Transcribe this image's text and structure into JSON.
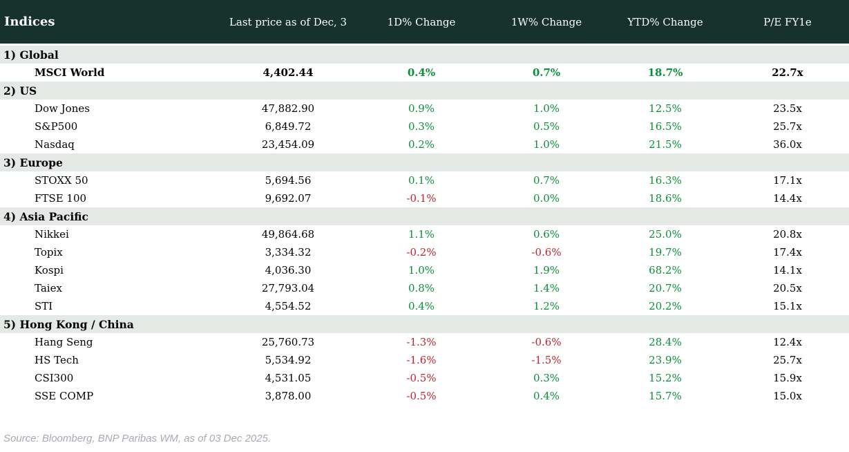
{
  "colors": {
    "header_bg": "#17322b",
    "header_text": "#ffffff",
    "section_bg": "#e5e9e6",
    "positive": "#0a9038",
    "negative": "#c2232c",
    "footer_text": "#a6abb2"
  },
  "footer": {
    "source_note": "Source: Bloomberg, BNP Paribas WM, as of 03 Dec 2025."
  },
  "chart_data": {
    "type": "table",
    "title": "Indices",
    "columns": [
      "Indices",
      "Last price as of Dec, 3",
      "1D% Change",
      "1W% Change",
      "YTD% Change",
      "P/E FY1e"
    ],
    "sections": [
      {
        "label": "1) Global",
        "rows": [
          {
            "name": "MSCI World",
            "values": [
              "4,402.44",
              "0.4%",
              "0.7%",
              "18.7%",
              "22.7x"
            ],
            "emphasis": true
          }
        ]
      },
      {
        "label": "2) US",
        "rows": [
          {
            "name": "Dow Jones",
            "values": [
              "47,882.90",
              "0.9%",
              "1.0%",
              "12.5%",
              "23.5x"
            ],
            "emphasis": false
          },
          {
            "name": "S&P500",
            "values": [
              "6,849.72",
              "0.3%",
              "0.5%",
              "16.5%",
              "25.7x"
            ],
            "emphasis": false
          },
          {
            "name": "Nasdaq",
            "values": [
              "23,454.09",
              "0.2%",
              "1.0%",
              "21.5%",
              "36.0x"
            ],
            "emphasis": false
          }
        ]
      },
      {
        "label": "3) Europe",
        "rows": [
          {
            "name": "STOXX 50",
            "values": [
              "5,694.56",
              "0.1%",
              "0.7%",
              "16.3%",
              "17.1x"
            ],
            "emphasis": false
          },
          {
            "name": "FTSE 100",
            "values": [
              "9,692.07",
              "-0.1%",
              "0.0%",
              "18.6%",
              "14.4x"
            ],
            "emphasis": false
          }
        ]
      },
      {
        "label": "4) Asia Pacific",
        "rows": [
          {
            "name": "Nikkei",
            "values": [
              "49,864.68",
              "1.1%",
              "0.6%",
              "25.0%",
              "20.8x"
            ],
            "emphasis": false
          },
          {
            "name": "Topix",
            "values": [
              "3,334.32",
              "-0.2%",
              "-0.6%",
              "19.7%",
              "17.4x"
            ],
            "emphasis": false
          },
          {
            "name": "Kospi",
            "values": [
              "4,036.30",
              "1.0%",
              "1.9%",
              "68.2%",
              "14.1x"
            ],
            "emphasis": false
          },
          {
            "name": "Taiex",
            "values": [
              "27,793.04",
              "0.8%",
              "1.4%",
              "20.7%",
              "20.5x"
            ],
            "emphasis": false
          },
          {
            "name": "STI",
            "values": [
              "4,554.52",
              "0.4%",
              "1.2%",
              "20.2%",
              "15.1x"
            ],
            "emphasis": false
          }
        ]
      },
      {
        "label": "5) Hong Kong / China",
        "rows": [
          {
            "name": "Hang Seng",
            "values": [
              "25,760.73",
              "-1.3%",
              "-0.6%",
              "28.4%",
              "12.4x"
            ],
            "emphasis": false
          },
          {
            "name": "HS Tech",
            "values": [
              "5,534.92",
              "-1.6%",
              "-1.5%",
              "23.9%",
              "25.7x"
            ],
            "emphasis": false
          },
          {
            "name": "CSI300",
            "values": [
              "4,531.05",
              "-0.5%",
              "0.3%",
              "15.2%",
              "15.9x"
            ],
            "emphasis": false
          },
          {
            "name": "SSE COMP",
            "values": [
              "3,878.00",
              "-0.5%",
              "0.4%",
              "15.7%",
              "15.0x"
            ],
            "emphasis": false
          }
        ]
      }
    ]
  }
}
